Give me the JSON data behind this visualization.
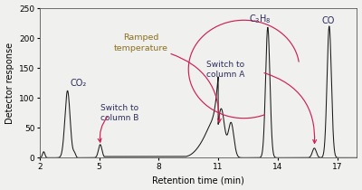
{
  "xlim": [
    2,
    18
  ],
  "ylim": [
    0,
    250
  ],
  "xticks": [
    2,
    5,
    8,
    11,
    14,
    17
  ],
  "yticks": [
    0,
    50,
    100,
    150,
    200,
    250
  ],
  "xlabel": "Retention time (min)",
  "ylabel": "Detector response",
  "bg_color": "#f0f0ee",
  "line_color": "#1a1a1a",
  "ann_color": "#2a2a5a",
  "ramped_color": "#8B7020",
  "arrow_color": "#cc2255",
  "co2_label": "CO₂",
  "c3h8_label": "C₃H₈",
  "co_label": "CO",
  "ramped_label": "Ramped\ntemperature",
  "switch_b_label": "Switch to\ncolumn B",
  "switch_a_label": "Switch to\ncolumn A"
}
